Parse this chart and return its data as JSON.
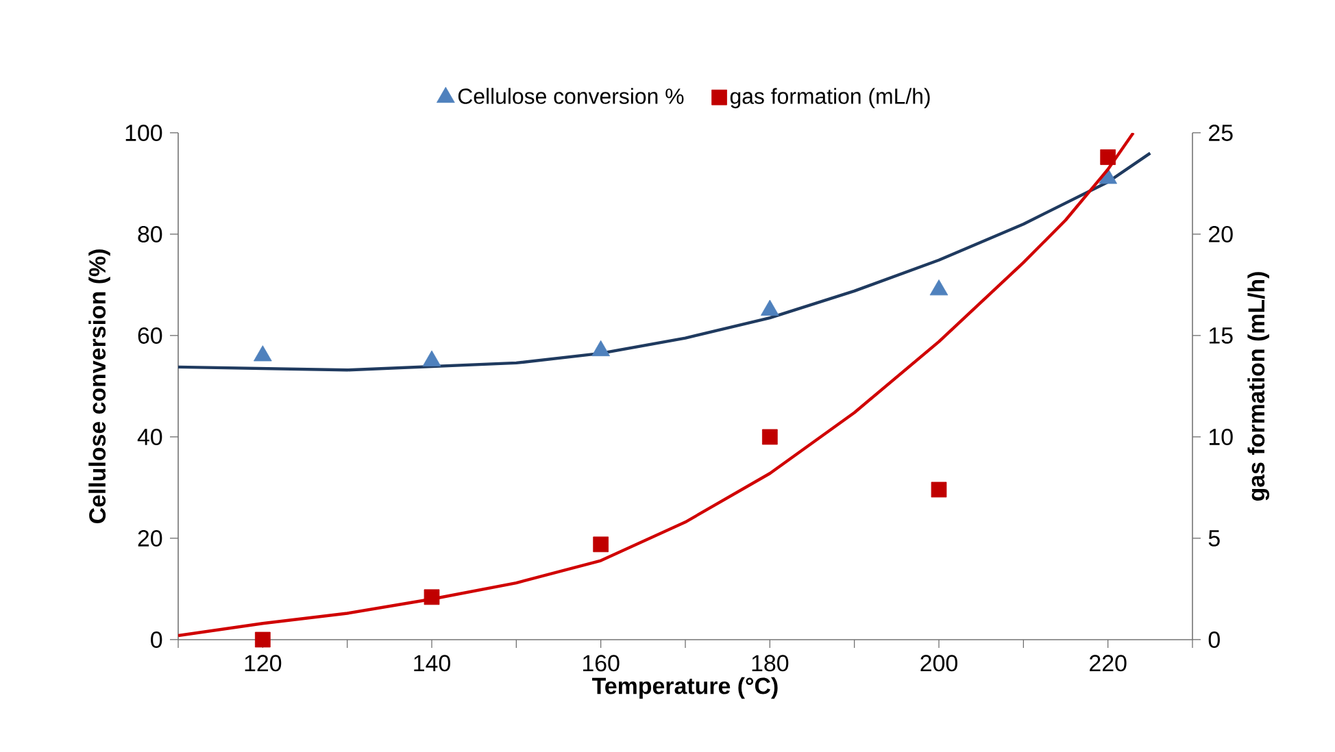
{
  "chart_data": {
    "type": "scatter",
    "xlabel": "Temperature (°C)",
    "ylabel": "Cellulose conversion (%)",
    "y2label": "gas formation (mL/h)",
    "xlim": [
      110,
      230
    ],
    "xticks": [
      {
        "value": 110,
        "label": null
      },
      120,
      {
        "value": 130,
        "label": null
      },
      140,
      {
        "value": 150,
        "label": null
      },
      160,
      {
        "value": 170,
        "label": null
      },
      180,
      {
        "value": 190,
        "label": null
      },
      200,
      {
        "value": 210,
        "label": null
      },
      220,
      {
        "value": 230,
        "label": null
      }
    ],
    "ylim": [
      0,
      100
    ],
    "yticks": [
      0,
      20,
      40,
      60,
      80,
      100
    ],
    "y2lim": [
      0,
      25
    ],
    "y2ticks": [
      0,
      5,
      10,
      15,
      20,
      25
    ],
    "legend": "top",
    "series": [
      {
        "name": "Cellulose conversion %",
        "marker": "triangle",
        "color": "#4f81bd",
        "axis": "y",
        "x": [
          120,
          140,
          160,
          180,
          200,
          220
        ],
        "values": [
          56,
          55,
          57,
          65,
          69,
          91
        ]
      },
      {
        "name": "gas formation (mL/h)",
        "marker": "square",
        "color": "#c00000",
        "axis": "y2",
        "x": [
          120,
          140,
          160,
          180,
          200,
          220
        ],
        "values": [
          0,
          2.1,
          4.7,
          10,
          7.4,
          23.8
        ]
      },
      {
        "type": "line",
        "marker": "none",
        "line_style": "solid",
        "color": "#1f3a5f",
        "axis": "y",
        "x": [
          110,
          130,
          150,
          160,
          170,
          180,
          190,
          200,
          210,
          220,
          225
        ],
        "values": [
          53.8,
          53.2,
          54.6,
          56.5,
          59.5,
          63.5,
          68.8,
          74.9,
          82,
          90.3,
          96
        ]
      },
      {
        "type": "line",
        "marker": "none",
        "line_style": "solid",
        "color": "#d00000",
        "axis": "y2",
        "x": [
          110,
          120,
          130,
          140,
          150,
          160,
          170,
          180,
          190,
          200,
          210,
          215,
          220,
          223
        ],
        "values": [
          0.2,
          0.8,
          1.3,
          2.0,
          2.8,
          3.9,
          5.8,
          8.2,
          11.2,
          14.7,
          18.6,
          20.7,
          23.2,
          25
        ]
      }
    ]
  }
}
